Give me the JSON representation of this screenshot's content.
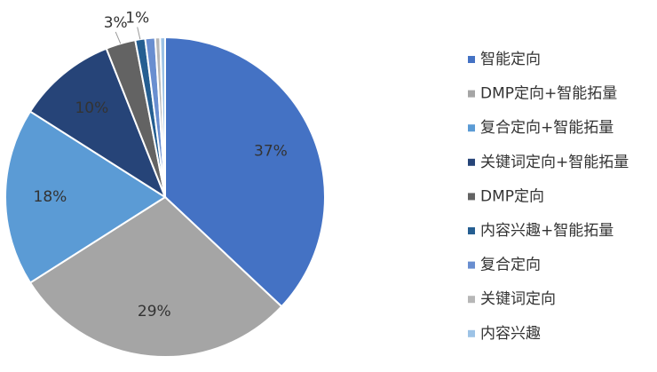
{
  "chart_data": {
    "type": "pie",
    "categories": [
      "智能定向",
      "DMP定向+智能拓量",
      "复合定向+智能拓量",
      "关键词定向+智能拓量",
      "DMP定向",
      "内容兴趣+智能拓量",
      "复合定向",
      "关键词定向",
      "内容兴趣"
    ],
    "values": [
      37,
      29,
      18,
      10,
      3,
      1,
      1,
      0.5,
      0.5
    ],
    "value_labels": [
      "37%",
      "29%",
      "18%",
      "10%",
      "3%",
      "1%",
      null,
      null,
      null
    ],
    "colors": [
      "#4472c4",
      "#a5a5a5",
      "#5b9bd5",
      "#264478",
      "#636363",
      "#255e91",
      "#698ed0",
      "#b7b7b7",
      "#9dc3e6"
    ],
    "legend": "right"
  }
}
